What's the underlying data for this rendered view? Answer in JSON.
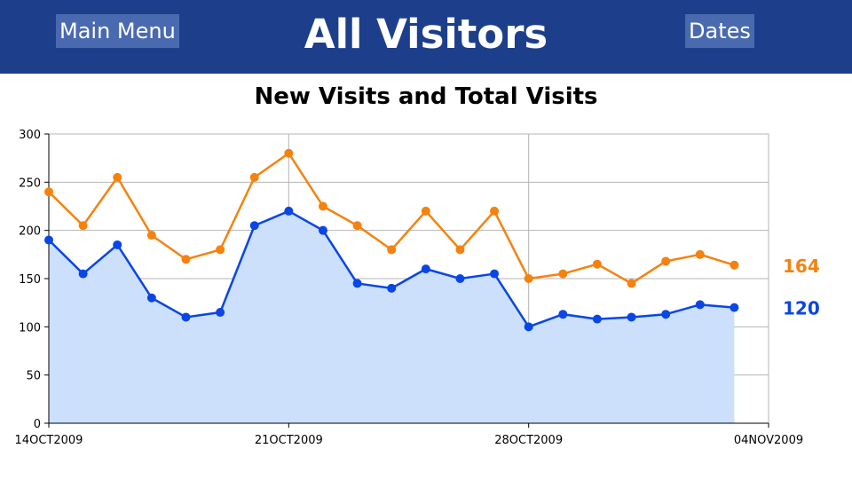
{
  "header": {
    "title": "All Visitors",
    "main_menu_label": "Main Menu",
    "dates_label": "Dates",
    "background": "#1d3f8b",
    "button_color": "#4a6ab0"
  },
  "chart_data": {
    "type": "line",
    "title": "New Visits and Total Visits",
    "xlabel": "",
    "ylabel": "",
    "ylim": [
      0,
      300
    ],
    "yticks": [
      0,
      50,
      100,
      150,
      200,
      250,
      300
    ],
    "xlim": [
      "2009-10-14",
      "2009-11-04"
    ],
    "xtick_labels": [
      "14OCT2009",
      "21OCT2009",
      "28OCT2009",
      "04NOV2009"
    ],
    "xticks": [
      "2009-10-14",
      "2009-10-21",
      "2009-10-28",
      "2009-11-04"
    ],
    "grid": true,
    "x": [
      "2009-10-14",
      "2009-10-15",
      "2009-10-16",
      "2009-10-17",
      "2009-10-18",
      "2009-10-19",
      "2009-10-20",
      "2009-10-21",
      "2009-10-22",
      "2009-10-23",
      "2009-10-24",
      "2009-10-25",
      "2009-10-26",
      "2009-10-27",
      "2009-10-28",
      "2009-10-29",
      "2009-10-30",
      "2009-10-31",
      "2009-11-01",
      "2009-11-02",
      "2009-11-03"
    ],
    "series": [
      {
        "color": "#f5820f",
        "values": [
          240,
          205,
          255,
          195,
          170,
          180,
          255,
          280,
          225,
          205,
          180,
          220,
          180,
          220,
          150,
          155,
          165,
          145,
          168,
          175,
          164
        ],
        "end_label": "164",
        "filled": false
      },
      {
        "color": "#0a46e6",
        "fill_color": "#cce0fb",
        "values": [
          190,
          155,
          185,
          130,
          110,
          115,
          205,
          220,
          200,
          145,
          140,
          160,
          150,
          155,
          100,
          113,
          108,
          110,
          113,
          123,
          120
        ],
        "end_label": "120",
        "filled": true
      }
    ]
  }
}
